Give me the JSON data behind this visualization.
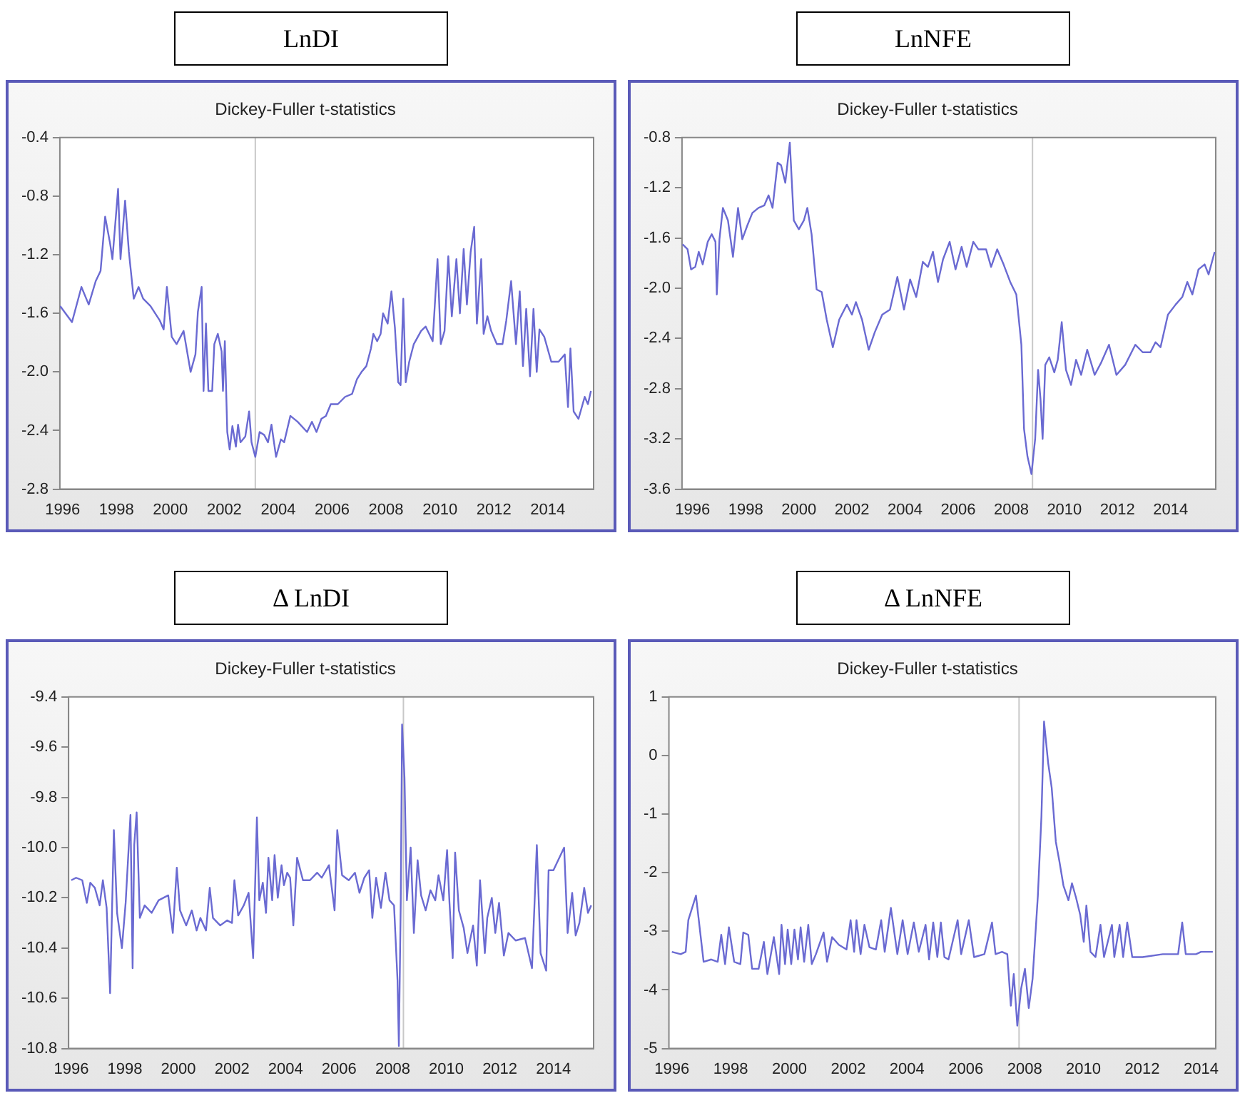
{
  "chart_data": [
    {
      "type": "line",
      "title": "LnDI",
      "subtitle": "Dickey-Fuller t-statistics",
      "color": "#6a6ad2",
      "grid": false,
      "legend": false,
      "xlim": [
        1995.9,
        2015.7
      ],
      "xticks": [
        1996,
        1998,
        2000,
        2002,
        2004,
        2006,
        2008,
        2010,
        2012,
        2014
      ],
      "ylim": [
        -2.8,
        -0.4
      ],
      "yticks": [
        {
          "value": -2.8,
          "label": "-2.8"
        },
        {
          "value": -2.4,
          "label": "-2.4"
        },
        {
          "value": -2,
          "label": "-2.0"
        },
        {
          "value": -1.6,
          "label": "-1.6"
        },
        {
          "value": -1.2,
          "label": "-1.2"
        },
        {
          "value": -0.8,
          "label": "-0.8"
        },
        {
          "value": -0.4,
          "label": "-0.4"
        }
      ],
      "ref_lines": [
        {
          "axis": "x",
          "value": 2003.15,
          "color": "#c8c8c8"
        }
      ],
      "x": [
        1995.91,
        1996.35,
        1996.7,
        1996.97,
        1997.23,
        1997.41,
        1997.58,
        1997.76,
        1997.85,
        1998.06,
        1998.15,
        1998.32,
        1998.46,
        1998.64,
        1998.82,
        1998.99,
        1999.26,
        1999.61,
        1999.75,
        1999.87,
        2000.05,
        2000.23,
        2000.49,
        2000.75,
        2000.93,
        2001.02,
        2001.16,
        2001.23,
        2001.32,
        2001.41,
        2001.55,
        2001.63,
        2001.76,
        2001.9,
        2001.95,
        2002.02,
        2002.11,
        2002.2,
        2002.3,
        2002.43,
        2002.51,
        2002.6,
        2002.78,
        2002.92,
        2003.01,
        2003.15,
        2003.31,
        2003.48,
        2003.62,
        2003.75,
        2003.92,
        2004.1,
        2004.22,
        2004.45,
        2004.72,
        2005.07,
        2005.25,
        2005.42,
        2005.6,
        2005.77,
        2005.95,
        2006.21,
        2006.48,
        2006.74,
        2006.92,
        2007.09,
        2007.27,
        2007.44,
        2007.53,
        2007.67,
        2007.8,
        2007.89,
        2008.06,
        2008.2,
        2008.33,
        2008.45,
        2008.54,
        2008.64,
        2008.73,
        2008.86,
        2009.03,
        2009.3,
        2009.47,
        2009.73,
        2009.91,
        2010.03,
        2010.17,
        2010.31,
        2010.44,
        2010.61,
        2010.74,
        2010.88,
        2011,
        2011.14,
        2011.27,
        2011.37,
        2011.53,
        2011.62,
        2011.76,
        2011.9,
        2012.11,
        2012.32,
        2012.46,
        2012.64,
        2012.82,
        2012.96,
        2013.08,
        2013.2,
        2013.34,
        2013.47,
        2013.59,
        2013.69,
        2013.87,
        2014.13,
        2014.4,
        2014.63,
        2014.75,
        2014.84,
        2014.96,
        2015.14,
        2015.37,
        2015.49,
        2015.6
      ],
      "values": [
        -1.55,
        -1.66,
        -1.42,
        -1.54,
        -1.38,
        -1.31,
        -0.94,
        -1.12,
        -1.23,
        -0.75,
        -1.23,
        -0.83,
        -1.18,
        -1.5,
        -1.42,
        -1.5,
        -1.55,
        -1.65,
        -1.71,
        -1.42,
        -1.76,
        -1.81,
        -1.72,
        -2,
        -1.88,
        -1.59,
        -1.42,
        -2.13,
        -1.67,
        -2.13,
        -2.13,
        -1.81,
        -1.74,
        -1.86,
        -2.13,
        -1.79,
        -2.41,
        -2.53,
        -2.37,
        -2.51,
        -2.36,
        -2.48,
        -2.44,
        -2.27,
        -2.48,
        -2.58,
        -2.41,
        -2.43,
        -2.48,
        -2.36,
        -2.58,
        -2.46,
        -2.48,
        -2.3,
        -2.34,
        -2.41,
        -2.34,
        -2.41,
        -2.32,
        -2.3,
        -2.22,
        -2.22,
        -2.17,
        -2.15,
        -2.05,
        -2,
        -1.96,
        -1.84,
        -1.74,
        -1.79,
        -1.74,
        -1.6,
        -1.67,
        -1.45,
        -1.7,
        -2.07,
        -2.09,
        -1.5,
        -2.07,
        -1.93,
        -1.81,
        -1.72,
        -1.69,
        -1.79,
        -1.23,
        -1.81,
        -1.72,
        -1.21,
        -1.62,
        -1.23,
        -1.6,
        -1.16,
        -1.54,
        -1.18,
        -1.01,
        -1.67,
        -1.23,
        -1.74,
        -1.62,
        -1.72,
        -1.81,
        -1.81,
        -1.65,
        -1.38,
        -1.81,
        -1.45,
        -1.96,
        -1.57,
        -2.03,
        -1.57,
        -2,
        -1.71,
        -1.76,
        -1.93,
        -1.93,
        -1.88,
        -2.24,
        -1.84,
        -2.27,
        -2.32,
        -2.17,
        -2.22,
        -2.13
      ]
    },
    {
      "type": "line",
      "title": "LnNFE",
      "subtitle": "Dickey-Fuller t-statistics",
      "color": "#6a6ad2",
      "grid": false,
      "legend": false,
      "xlim": [
        1995.6,
        2015.7
      ],
      "xticks": [
        1996,
        1998,
        2000,
        2002,
        2004,
        2006,
        2008,
        2010,
        2012,
        2014
      ],
      "ylim": [
        -3.6,
        -0.8
      ],
      "yticks": [
        {
          "value": -3.6,
          "label": "-3.6"
        },
        {
          "value": -3.2,
          "label": "-3.2"
        },
        {
          "value": -2.8,
          "label": "-2.8"
        },
        {
          "value": -2.4,
          "label": "-2.4"
        },
        {
          "value": -2,
          "label": "-2.0"
        },
        {
          "value": -1.6,
          "label": "-1.6"
        },
        {
          "value": -1.2,
          "label": "-1.2"
        },
        {
          "value": -0.8,
          "label": "-0.8"
        }
      ],
      "ref_lines": [
        {
          "axis": "x",
          "value": 2008.8,
          "color": "#c8c8c8"
        }
      ],
      "x": [
        1995.62,
        1995.81,
        1995.94,
        1996.1,
        1996.23,
        1996.38,
        1996.57,
        1996.72,
        1996.86,
        1996.91,
        1997.01,
        1997.14,
        1997.33,
        1997.52,
        1997.71,
        1997.87,
        1998.06,
        1998.25,
        1998.48,
        1998.7,
        1998.86,
        1999.01,
        1999.2,
        1999.33,
        1999.49,
        1999.66,
        1999.81,
        2000,
        2000.19,
        2000.32,
        2000.48,
        2000.67,
        2000.86,
        2001.05,
        2001.28,
        2001.52,
        2001.81,
        2002,
        2002.15,
        2002.38,
        2002.63,
        2002.86,
        2003.14,
        2003.43,
        2003.71,
        2003.96,
        2004.19,
        2004.42,
        2004.67,
        2004.86,
        2005.05,
        2005.24,
        2005.43,
        2005.68,
        2005.9,
        2006.13,
        2006.32,
        2006.57,
        2006.76,
        2007.05,
        2007.24,
        2007.47,
        2007.71,
        2007.96,
        2008.19,
        2008.38,
        2008.48,
        2008.61,
        2008.76,
        2008.9,
        2009.01,
        2009.1,
        2009.18,
        2009.28,
        2009.43,
        2009.62,
        2009.75,
        2009.9,
        2010.06,
        2010.25,
        2010.44,
        2010.63,
        2010.86,
        2011.14,
        2011.39,
        2011.68,
        2011.96,
        2012.29,
        2012.67,
        2012.95,
        2013.24,
        2013.43,
        2013.62,
        2013.9,
        2014.19,
        2014.44,
        2014.63,
        2014.82,
        2015.05,
        2015.28,
        2015.43,
        2015.66
      ],
      "values": [
        -1.65,
        -1.69,
        -1.85,
        -1.83,
        -1.71,
        -1.81,
        -1.63,
        -1.57,
        -1.63,
        -2.05,
        -1.61,
        -1.36,
        -1.46,
        -1.75,
        -1.36,
        -1.61,
        -1.5,
        -1.4,
        -1.36,
        -1.34,
        -1.26,
        -1.36,
        -1,
        -1.02,
        -1.16,
        -0.84,
        -1.46,
        -1.53,
        -1.46,
        -1.36,
        -1.57,
        -2.01,
        -2.03,
        -2.25,
        -2.47,
        -2.25,
        -2.13,
        -2.21,
        -2.11,
        -2.25,
        -2.49,
        -2.35,
        -2.21,
        -2.17,
        -1.91,
        -2.17,
        -1.93,
        -2.07,
        -1.79,
        -1.83,
        -1.71,
        -1.95,
        -1.77,
        -1.63,
        -1.85,
        -1.67,
        -1.83,
        -1.63,
        -1.69,
        -1.69,
        -1.83,
        -1.69,
        -1.81,
        -1.95,
        -2.05,
        -2.45,
        -3.12,
        -3.34,
        -3.48,
        -3.2,
        -2.65,
        -2.88,
        -3.2,
        -2.61,
        -2.55,
        -2.67,
        -2.57,
        -2.27,
        -2.65,
        -2.77,
        -2.57,
        -2.69,
        -2.49,
        -2.69,
        -2.59,
        -2.45,
        -2.69,
        -2.61,
        -2.45,
        -2.51,
        -2.51,
        -2.43,
        -2.47,
        -2.21,
        -2.13,
        -2.07,
        -1.95,
        -2.05,
        -1.85,
        -1.81,
        -1.89,
        -1.71
      ]
    },
    {
      "type": "line",
      "title": "Δ LnDI",
      "subtitle": "Dickey-Fuller t-statistics",
      "color": "#6a6ad2",
      "grid": false,
      "legend": false,
      "xlim": [
        1995.9,
        2015.5
      ],
      "xticks": [
        1996,
        1998,
        2000,
        2002,
        2004,
        2006,
        2008,
        2010,
        2012,
        2014
      ],
      "ylim": [
        -10.8,
        -9.4
      ],
      "yticks": [
        {
          "value": -10.8,
          "label": "-10.8"
        },
        {
          "value": -10.6,
          "label": "-10.6"
        },
        {
          "value": -10.4,
          "label": "-10.4"
        },
        {
          "value": -10.2,
          "label": "-10.2"
        },
        {
          "value": -10,
          "label": "-10.0"
        },
        {
          "value": -9.8,
          "label": "-9.8"
        },
        {
          "value": -9.6,
          "label": "-9.6"
        },
        {
          "value": -9.4,
          "label": "-9.4"
        }
      ],
      "ref_lines": [
        {
          "axis": "x",
          "value": 2008.4,
          "color": "#c8c8c8"
        }
      ],
      "x": [
        1996,
        1996.18,
        1996.41,
        1996.58,
        1996.71,
        1996.88,
        1997.06,
        1997.18,
        1997.32,
        1997.45,
        1997.59,
        1997.71,
        1997.89,
        1998.03,
        1998.21,
        1998.29,
        1998.35,
        1998.44,
        1998.56,
        1998.74,
        1999,
        1999.26,
        1999.62,
        1999.79,
        1999.94,
        2000.06,
        2000.29,
        2000.5,
        2000.68,
        2000.82,
        2001.03,
        2001.17,
        2001.29,
        2001.56,
        2001.82,
        2002,
        2002.09,
        2002.23,
        2002.44,
        2002.62,
        2002.79,
        2002.93,
        2003.02,
        2003.15,
        2003.27,
        2003.36,
        2003.5,
        2003.59,
        2003.71,
        2003.85,
        2003.94,
        2004.06,
        2004.17,
        2004.29,
        2004.43,
        2004.65,
        2004.91,
        2005.18,
        2005.35,
        2005.62,
        2005.83,
        2005.93,
        2006.11,
        2006.36,
        2006.59,
        2006.76,
        2006.94,
        2007.12,
        2007.24,
        2007.38,
        2007.56,
        2007.73,
        2007.88,
        2008.05,
        2008.18,
        2008.23,
        2008.3,
        2008.35,
        2008.44,
        2008.53,
        2008.67,
        2008.79,
        2008.93,
        2009.06,
        2009.23,
        2009.41,
        2009.59,
        2009.71,
        2009.89,
        2010.03,
        2010.12,
        2010.24,
        2010.33,
        2010.47,
        2010.65,
        2010.79,
        2011,
        2011.14,
        2011.26,
        2011.44,
        2011.53,
        2011.7,
        2011.83,
        2011.97,
        2012.15,
        2012.32,
        2012.59,
        2012.94,
        2013.2,
        2013.38,
        2013.52,
        2013.73,
        2013.82,
        2014,
        2014.4,
        2014.53,
        2014.7,
        2014.83,
        2014.97,
        2015.15,
        2015.29,
        2015.41
      ],
      "values": [
        -10.13,
        -10.12,
        -10.13,
        -10.22,
        -10.14,
        -10.16,
        -10.23,
        -10.13,
        -10.24,
        -10.58,
        -9.93,
        -10.26,
        -10.4,
        -10.22,
        -9.87,
        -10.48,
        -9.99,
        -9.86,
        -10.28,
        -10.23,
        -10.26,
        -10.21,
        -10.19,
        -10.34,
        -10.08,
        -10.25,
        -10.31,
        -10.25,
        -10.33,
        -10.28,
        -10.33,
        -10.16,
        -10.28,
        -10.31,
        -10.29,
        -10.3,
        -10.13,
        -10.27,
        -10.23,
        -10.18,
        -10.44,
        -9.88,
        -10.21,
        -10.14,
        -10.26,
        -10.04,
        -10.21,
        -10.03,
        -10.2,
        -10.07,
        -10.15,
        -10.1,
        -10.12,
        -10.31,
        -10.04,
        -10.13,
        -10.13,
        -10.1,
        -10.12,
        -10.07,
        -10.25,
        -9.93,
        -10.11,
        -10.13,
        -10.1,
        -10.18,
        -10.12,
        -10.09,
        -10.28,
        -10.12,
        -10.24,
        -10.1,
        -10.21,
        -10.23,
        -10.53,
        -10.79,
        -10.22,
        -9.51,
        -9.72,
        -10.21,
        -10,
        -10.34,
        -10.05,
        -10.19,
        -10.25,
        -10.17,
        -10.21,
        -10.11,
        -10.21,
        -10.01,
        -10.22,
        -10.44,
        -10.02,
        -10.25,
        -10.32,
        -10.42,
        -10.31,
        -10.47,
        -10.13,
        -10.42,
        -10.28,
        -10.2,
        -10.34,
        -10.22,
        -10.43,
        -10.34,
        -10.37,
        -10.36,
        -10.48,
        -9.99,
        -10.42,
        -10.49,
        -10.09,
        -10.09,
        -10,
        -10.34,
        -10.18,
        -10.35,
        -10.3,
        -10.16,
        -10.26,
        -10.23
      ]
    },
    {
      "type": "line",
      "title": "Δ LnNFE",
      "subtitle": "Dickey-Fuller t-statistics",
      "color": "#6a6ad2",
      "grid": false,
      "legend": false,
      "xlim": [
        1995.9,
        2014.5
      ],
      "xticks": [
        1996,
        1998,
        2000,
        2002,
        2004,
        2006,
        2008,
        2010,
        2012,
        2014
      ],
      "ylim": [
        -5,
        1
      ],
      "yticks": [
        -5,
        -4,
        -3,
        -2,
        -1,
        0,
        1
      ],
      "ref_lines": [
        {
          "axis": "x",
          "value": 2007.81,
          "color": "#c8c8c8"
        }
      ],
      "x": [
        1996,
        1996.3,
        1996.47,
        1996.56,
        1996.82,
        1997.08,
        1997.34,
        1997.56,
        1997.68,
        1997.81,
        1997.94,
        1998.12,
        1998.33,
        1998.43,
        1998.6,
        1998.73,
        1998.95,
        1999.13,
        1999.25,
        1999.47,
        1999.65,
        1999.73,
        1999.85,
        1999.94,
        2000.06,
        2000.17,
        2000.29,
        2000.38,
        2000.5,
        2000.64,
        2000.76,
        2000.9,
        2001.16,
        2001.28,
        2001.45,
        2001.68,
        2001.94,
        2002.08,
        2002.2,
        2002.28,
        2002.42,
        2002.55,
        2002.72,
        2002.94,
        2003.12,
        2003.24,
        2003.45,
        2003.67,
        2003.85,
        2004.02,
        2004.23,
        2004.4,
        2004.63,
        2004.75,
        2004.89,
        2005.03,
        2005.15,
        2005.27,
        2005.41,
        2005.72,
        2005.84,
        2006.1,
        2006.28,
        2006.63,
        2006.89,
        2007.01,
        2007.23,
        2007.41,
        2007.53,
        2007.63,
        2007.75,
        2007.88,
        2008.01,
        2008.14,
        2008.27,
        2008.45,
        2008.57,
        2008.66,
        2008.8,
        2008.92,
        2009.06,
        2009.18,
        2009.32,
        2009.49,
        2009.61,
        2009.75,
        2009.89,
        2010.01,
        2010.1,
        2010.24,
        2010.41,
        2010.58,
        2010.7,
        2010.97,
        2011.05,
        2011.23,
        2011.35,
        2011.49,
        2011.66,
        2012.01,
        2012.7,
        2013.22,
        2013.36,
        2013.48,
        2013.83,
        2014,
        2014.4
      ],
      "values": [
        -3.35,
        -3.39,
        -3.35,
        -2.81,
        -2.39,
        -3.52,
        -3.48,
        -3.52,
        -3.06,
        -3.56,
        -2.93,
        -3.52,
        -3.56,
        -3.02,
        -3.06,
        -3.64,
        -3.64,
        -3.18,
        -3.73,
        -3.1,
        -3.73,
        -2.89,
        -3.56,
        -2.97,
        -3.56,
        -2.97,
        -3.48,
        -2.93,
        -3.52,
        -2.89,
        -3.56,
        -3.39,
        -3.02,
        -3.52,
        -3.1,
        -3.23,
        -3.31,
        -2.81,
        -3.35,
        -2.81,
        -3.39,
        -2.89,
        -3.27,
        -3.31,
        -2.81,
        -3.35,
        -2.6,
        -3.39,
        -2.81,
        -3.39,
        -2.85,
        -3.35,
        -2.89,
        -3.48,
        -2.85,
        -3.44,
        -2.85,
        -3.44,
        -3.48,
        -2.81,
        -3.39,
        -2.81,
        -3.44,
        -3.39,
        -2.85,
        -3.39,
        -3.35,
        -3.39,
        -4.27,
        -3.73,
        -4.61,
        -3.98,
        -3.64,
        -4.31,
        -3.81,
        -2.39,
        -1.05,
        0.58,
        -0.13,
        -0.55,
        -1.47,
        -1.8,
        -2.22,
        -2.47,
        -2.18,
        -2.43,
        -2.72,
        -3.18,
        -2.56,
        -3.35,
        -3.44,
        -2.89,
        -3.44,
        -2.89,
        -3.44,
        -2.89,
        -3.44,
        -2.85,
        -3.44,
        -3.44,
        -3.39,
        -3.39,
        -2.85,
        -3.39,
        -3.39,
        -3.35,
        -3.35
      ]
    }
  ]
}
